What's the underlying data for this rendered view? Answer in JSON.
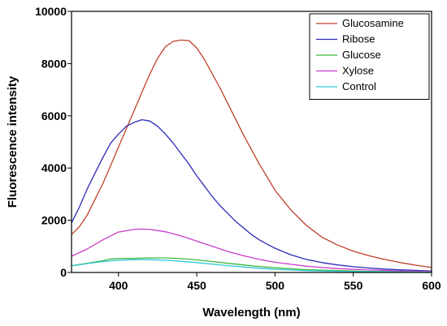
{
  "chart_data": {
    "type": "line",
    "xlabel": "Wavelength (nm)",
    "ylabel": "Fluorescence intensity",
    "xlim": [
      370,
      600
    ],
    "ylim": [
      0,
      10000
    ],
    "xticks": [
      400,
      450,
      500,
      550,
      600
    ],
    "yticks": [
      0,
      2000,
      4000,
      6000,
      8000,
      10000
    ],
    "grid": false,
    "legend_position": "top-right",
    "series": [
      {
        "name": "Glucosamine",
        "color": "#c0402a",
        "x": [
          370,
          375,
          380,
          385,
          390,
          395,
          400,
          405,
          410,
          415,
          420,
          425,
          430,
          435,
          440,
          445,
          450,
          455,
          460,
          465,
          470,
          475,
          480,
          485,
          490,
          495,
          500,
          510,
          520,
          530,
          540,
          550,
          560,
          570,
          580,
          590,
          600
        ],
        "y": [
          1450,
          1750,
          2200,
          2800,
          3400,
          4100,
          4800,
          5500,
          6200,
          6900,
          7600,
          8200,
          8650,
          8850,
          8900,
          8880,
          8600,
          8150,
          7600,
          7050,
          6450,
          5850,
          5250,
          4700,
          4150,
          3650,
          3150,
          2400,
          1800,
          1350,
          1050,
          820,
          640,
          500,
          380,
          280,
          190
        ]
      },
      {
        "name": "Ribose",
        "color": "#2a2ab8",
        "x": [
          370,
          375,
          380,
          385,
          390,
          395,
          400,
          405,
          410,
          415,
          420,
          425,
          430,
          435,
          440,
          445,
          450,
          455,
          460,
          465,
          470,
          475,
          480,
          485,
          490,
          495,
          500,
          510,
          520,
          530,
          540,
          550,
          560,
          570,
          580,
          590,
          600
        ],
        "y": [
          1900,
          2500,
          3200,
          3800,
          4400,
          4950,
          5300,
          5600,
          5750,
          5850,
          5800,
          5600,
          5300,
          4950,
          4550,
          4150,
          3700,
          3300,
          2900,
          2550,
          2250,
          1950,
          1700,
          1450,
          1250,
          1080,
          930,
          680,
          500,
          380,
          290,
          220,
          170,
          130,
          100,
          80,
          60
        ]
      },
      {
        "name": "Glucose",
        "color": "#3cb83c",
        "x": [
          370,
          380,
          390,
          395,
          400,
          410,
          420,
          430,
          440,
          450,
          460,
          470,
          480,
          490,
          500,
          520,
          540,
          560,
          580,
          600
        ],
        "y": [
          260,
          350,
          450,
          520,
          530,
          540,
          560,
          560,
          530,
          480,
          420,
          350,
          290,
          230,
          180,
          110,
          70,
          45,
          30,
          20
        ]
      },
      {
        "name": "Xylose",
        "color": "#c83cc8",
        "x": [
          370,
          380,
          390,
          400,
          410,
          415,
          420,
          430,
          440,
          450,
          460,
          470,
          480,
          490,
          500,
          520,
          540,
          560,
          580,
          600
        ],
        "y": [
          620,
          900,
          1250,
          1550,
          1650,
          1660,
          1650,
          1560,
          1400,
          1200,
          1000,
          800,
          640,
          500,
          390,
          240,
          150,
          95,
          60,
          40
        ]
      },
      {
        "name": "Control",
        "color": "#30c8d8",
        "x": [
          370,
          380,
          390,
          400,
          410,
          420,
          430,
          440,
          450,
          460,
          470,
          480,
          490,
          500,
          520,
          540,
          560,
          580,
          600
        ],
        "y": [
          250,
          340,
          420,
          470,
          490,
          490,
          470,
          430,
          380,
          320,
          260,
          210,
          160,
          120,
          70,
          45,
          30,
          20,
          15
        ]
      }
    ]
  }
}
